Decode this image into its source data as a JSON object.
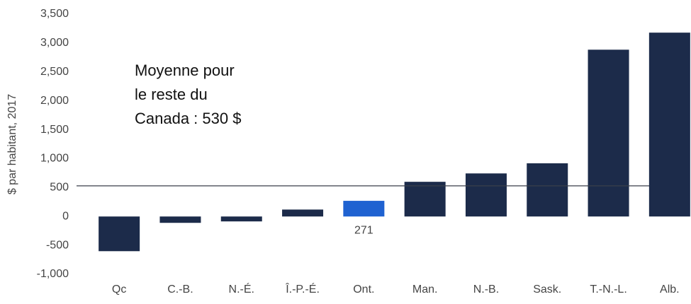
{
  "chart_data": {
    "type": "bar",
    "y_axis_label": "$ par habitant, 2017",
    "categories": [
      "Qc",
      "C.-B.",
      "N.-É.",
      "Î.-P.-É.",
      "Ont.",
      "Man.",
      "N.-B.",
      "Sask.",
      "T.-N.-L.",
      "Alb."
    ],
    "values": [
      -600,
      -110,
      -85,
      120,
      271,
      600,
      745,
      920,
      2885,
      3180
    ],
    "value_labels": [
      null,
      null,
      null,
      null,
      "271",
      null,
      null,
      null,
      null,
      null
    ],
    "colors": [
      "#1c2b4a",
      "#1c2b4a",
      "#1c2b4a",
      "#1c2b4a",
      "#1f62d1",
      "#1c2b4a",
      "#1c2b4a",
      "#1c2b4a",
      "#1c2b4a",
      "#1c2b4a"
    ],
    "ylim": [
      -1000,
      3500
    ],
    "yticks": [
      {
        "value": -1000,
        "label": "-1,000"
      },
      -500,
      0,
      500,
      {
        "value": 1000,
        "label": "1,000"
      },
      {
        "value": 1500,
        "label": "1,500"
      },
      {
        "value": 2000,
        "label": "2,000"
      },
      {
        "value": 2500,
        "label": "2,500"
      },
      {
        "value": 3000,
        "label": "3,000"
      },
      {
        "value": 3500,
        "label": "3,500"
      }
    ],
    "reference_line": {
      "value": 530,
      "color": "#3a3f4a"
    },
    "annotation": [
      "Moyenne pour",
      "le reste du",
      "Canada : 530 $"
    ],
    "grid": false
  }
}
